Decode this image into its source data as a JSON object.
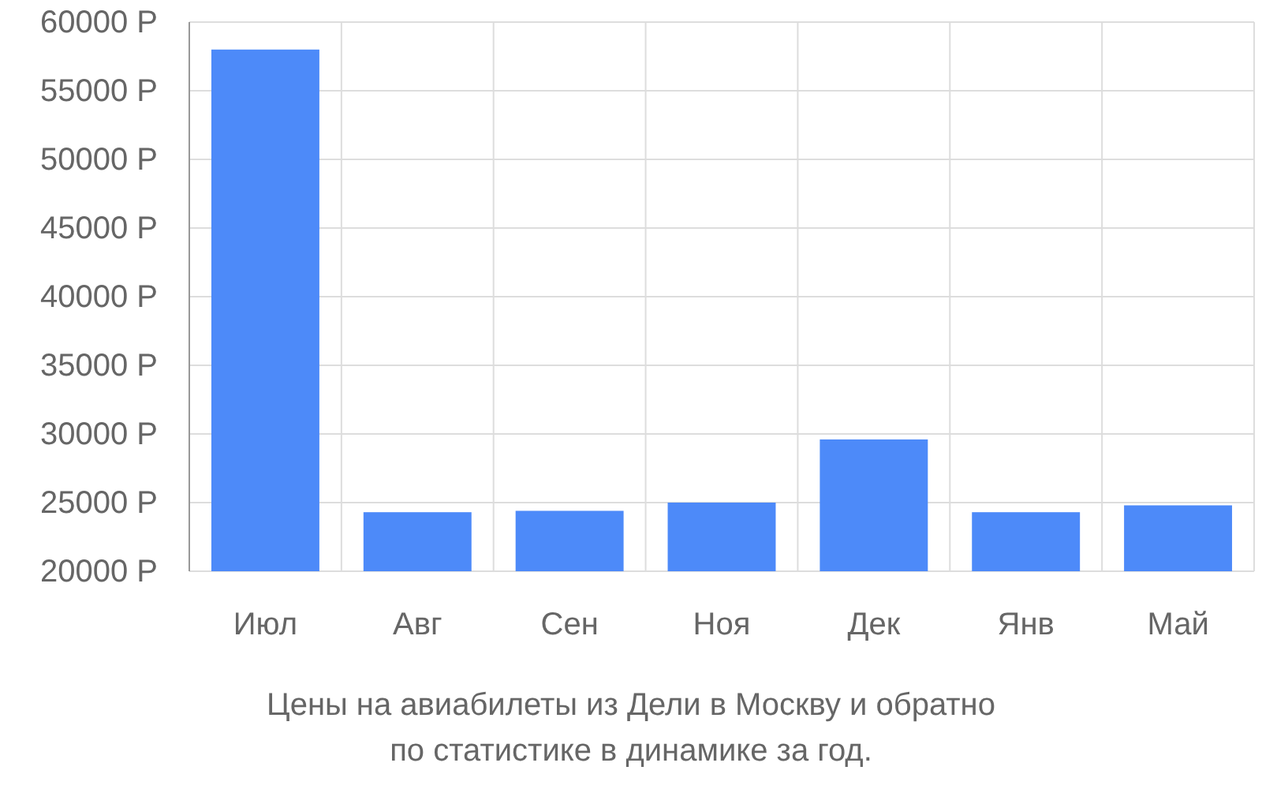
{
  "chart_data": {
    "type": "bar",
    "title": "Цены на авиабилеты из Дели в Москву и обратно",
    "subtitle": "по статистике в динамике за год.",
    "categories": [
      "Июл",
      "Авг",
      "Сен",
      "Ноя",
      "Дек",
      "Янв",
      "Май"
    ],
    "values": [
      58000,
      24300,
      24400,
      25000,
      29600,
      24300,
      24800
    ],
    "color": "#4d8af9",
    "ylim": [
      20000,
      60000
    ],
    "yticks": [
      {
        "value": 20000,
        "label": "20000 Р"
      },
      {
        "value": 25000,
        "label": "25000 Р"
      },
      {
        "value": 30000,
        "label": "30000 Р"
      },
      {
        "value": 35000,
        "label": "35000 Р"
      },
      {
        "value": 40000,
        "label": "40000 Р"
      },
      {
        "value": 45000,
        "label": "45000 Р"
      },
      {
        "value": 50000,
        "label": "50000 Р"
      },
      {
        "value": 55000,
        "label": "55000 Р"
      },
      {
        "value": 60000,
        "label": "60000 Р"
      }
    ],
    "grid": true
  }
}
